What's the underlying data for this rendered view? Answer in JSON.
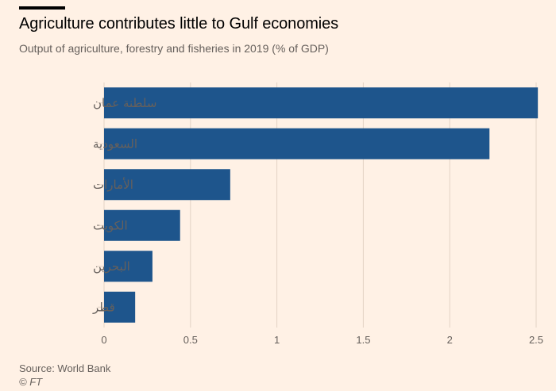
{
  "header": {
    "title": "Agriculture contributes little to Gulf economies",
    "subtitle": "Output of agriculture, forestry and fisheries in 2019 (% of GDP)"
  },
  "footer": {
    "source": "Source: World Bank",
    "credit": "© FT"
  },
  "colors": {
    "bar": "#1E558C",
    "grid": "#E3D3C5",
    "background": "#FFF1E5"
  },
  "chart_data": {
    "type": "bar",
    "orientation": "horizontal",
    "title": "Agriculture contributes little to Gulf economies",
    "subtitle": "Output of agriculture, forestry and fisheries in 2019 (% of GDP)",
    "categories": [
      "سلطنة عمان",
      "السعودية",
      "الأمارات",
      "الكويت",
      "البحرين",
      "قطر"
    ],
    "values": [
      2.51,
      2.23,
      0.73,
      0.44,
      0.28,
      0.18
    ],
    "xlim": [
      0,
      2.5
    ],
    "ticks": [
      0,
      0.5,
      1,
      1.5,
      2,
      2.5
    ],
    "tick_labels": [
      "0",
      "0.5",
      "1",
      "1.5",
      "2",
      "2.5"
    ],
    "xlabel": "",
    "ylabel": "",
    "grid": true
  }
}
